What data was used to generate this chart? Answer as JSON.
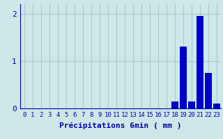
{
  "xlabel": "Précipitations 6min ( mm )",
  "bar_values": [
    0,
    0,
    0,
    0,
    0,
    0,
    0,
    0,
    0,
    0,
    0,
    0,
    0,
    0,
    0,
    0,
    0,
    0,
    0.15,
    1.3,
    0.15,
    1.95,
    0.75,
    0.1
  ],
  "bar_color": "#0000cc",
  "bg_color": "#cce8e8",
  "grid_color": "#aacaca",
  "axis_color": "#0000aa",
  "ylim": [
    0,
    2.2
  ],
  "yticks": [
    0,
    1,
    2
  ],
  "xtick_labels": [
    "0",
    "1",
    "2",
    "3",
    "4",
    "5",
    "6",
    "7",
    "8",
    "9",
    "10",
    "11",
    "12",
    "13",
    "14",
    "15",
    "16",
    "17",
    "18",
    "19",
    "20",
    "21",
    "22",
    "23"
  ],
  "xlabel_fontsize": 8,
  "tick_fontsize": 6.5,
  "ytick_fontsize": 8
}
